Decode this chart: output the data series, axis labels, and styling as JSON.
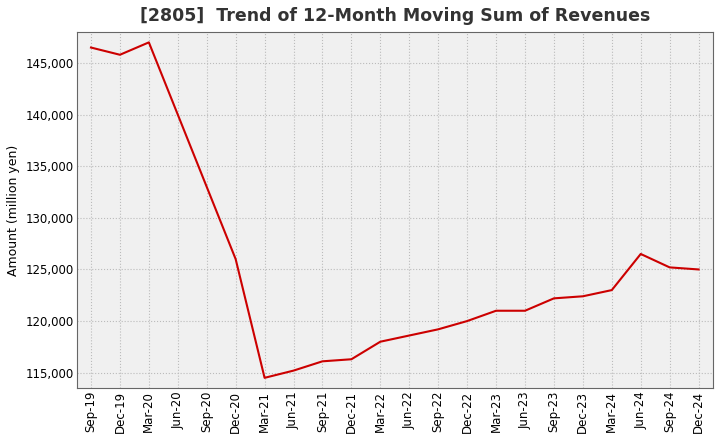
{
  "title": "[2805]  Trend of 12-Month Moving Sum of Revenues",
  "ylabel": "Amount (million yen)",
  "background_color": "#ffffff",
  "plot_bg_color": "#f0f0f0",
  "grid_color": "#bbbbbb",
  "line_color": "#cc0000",
  "x_labels": [
    "Sep-19",
    "Dec-19",
    "Mar-20",
    "Jun-20",
    "Sep-20",
    "Dec-20",
    "Mar-21",
    "Jun-21",
    "Sep-21",
    "Dec-21",
    "Mar-22",
    "Jun-22",
    "Sep-22",
    "Dec-22",
    "Mar-23",
    "Jun-23",
    "Sep-23",
    "Dec-23",
    "Mar-24",
    "Jun-24",
    "Sep-24",
    "Dec-24"
  ],
  "y_values": [
    146500,
    145800,
    147000,
    140000,
    133000,
    126000,
    114500,
    115200,
    116100,
    116300,
    118000,
    118600,
    119200,
    120000,
    121000,
    121000,
    122200,
    122400,
    123000,
    126500,
    125200,
    125000
  ],
  "ylim": [
    113500,
    148000
  ],
  "yticks": [
    115000,
    120000,
    125000,
    130000,
    135000,
    140000,
    145000
  ],
  "title_fontsize": 12.5,
  "ylabel_fontsize": 9,
  "tick_fontsize": 8.5
}
